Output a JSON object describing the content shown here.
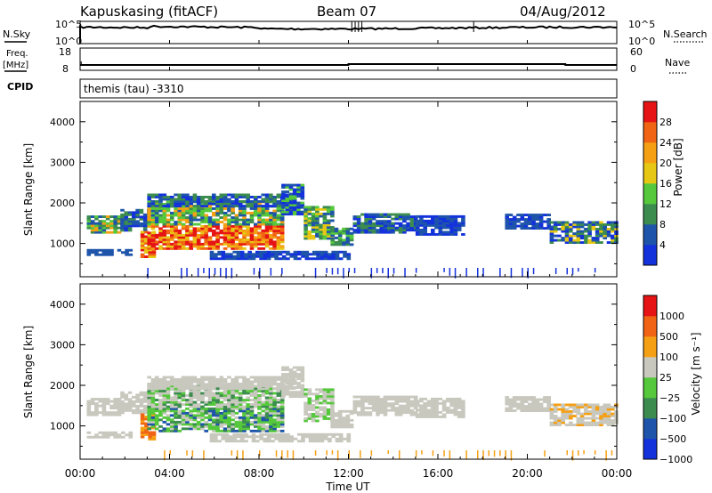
{
  "header": {
    "station": "Kapuskasing (fitACF)",
    "beam": "Beam 07",
    "date": "04/Aug/2012"
  },
  "left_labels": {
    "nsky": "N.Sky",
    "freq": "Freq.",
    "freq_unit": "[MHz]",
    "cpid": "CPID"
  },
  "right_labels": {
    "nsearch": "N.Search",
    "nave": "Nave"
  },
  "cpid_text": "themis (tau) -3310",
  "chart_data": [
    {
      "type": "line",
      "name": "noise",
      "series": [
        {
          "name": "N.Sky",
          "style": "solid"
        },
        {
          "name": "N.Search",
          "style": "dotted"
        }
      ],
      "y_ticks_left": [
        "10^5",
        "10^0"
      ],
      "y_ticks_right": [
        "10^5",
        "10^0"
      ],
      "x_range_hours": [
        0,
        24
      ]
    },
    {
      "type": "line",
      "name": "frequency",
      "series": [
        {
          "name": "Freq. [MHz]",
          "style": "solid",
          "value_approx": 10.4
        },
        {
          "name": "Nave",
          "style": "dotted"
        }
      ],
      "y_ticks_left": [
        "18",
        "8"
      ],
      "y_ticks_right": [
        "60",
        "0"
      ],
      "x_range_hours": [
        0,
        24
      ]
    },
    {
      "type": "heatmap",
      "name": "power",
      "ylabel": "Slant Range [km]",
      "y_ticks": [
        "1000",
        "2000",
        "3000",
        "4000"
      ],
      "ylim": [
        180,
        4500
      ],
      "colorbar": {
        "label": "Power [dB]",
        "ticks": [
          "4",
          "8",
          "12",
          "16",
          "20",
          "24",
          "28"
        ],
        "colors": [
          "#1432dc",
          "#1e55aa",
          "#3c8c50",
          "#55c83c",
          "#e6c814",
          "#f5a014",
          "#f06414",
          "#e61414"
        ]
      }
    },
    {
      "type": "heatmap",
      "name": "velocity",
      "ylabel": "Slant Range [km]",
      "y_ticks": [
        "1000",
        "2000",
        "3000",
        "4000"
      ],
      "ylim": [
        180,
        4500
      ],
      "colorbar": {
        "label": "Velocity [m s⁻¹]",
        "ticks": [
          "1000",
          "500",
          "100",
          "25",
          "−25",
          "−100",
          "−500",
          "−1000"
        ],
        "colors": [
          "#1432dc",
          "#1e55aa",
          "#3c8c50",
          "#55c83c",
          "#c8c8be",
          "#f5a014",
          "#f06414",
          "#e61414"
        ]
      }
    }
  ],
  "x_axis": {
    "xlabel": "Time UT",
    "ticks": [
      "00:00",
      "04:00",
      "08:00",
      "12:00",
      "16:00",
      "20:00",
      "00:00"
    ]
  }
}
